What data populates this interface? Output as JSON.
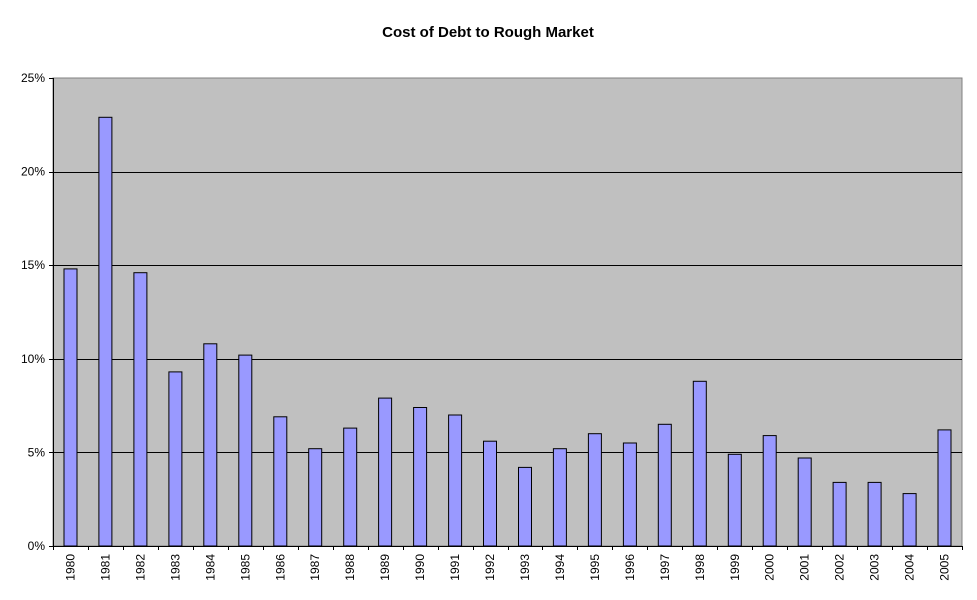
{
  "chart_data": {
    "type": "bar",
    "title": "Cost of Debt to Rough Market",
    "xlabel": "",
    "ylabel": "",
    "categories": [
      "1980",
      "1981",
      "1982",
      "1983",
      "1984",
      "1985",
      "1986",
      "1987",
      "1988",
      "1989",
      "1990",
      "1991",
      "1992",
      "1993",
      "1994",
      "1995",
      "1996",
      "1997",
      "1998",
      "1999",
      "2000",
      "2001",
      "2002",
      "2003",
      "2004",
      "2005"
    ],
    "series": [
      {
        "values": [
          14.8,
          22.9,
          14.6,
          9.3,
          10.8,
          10.2,
          6.9,
          5.2,
          6.3,
          7.9,
          7.4,
          7.0,
          5.6,
          4.2,
          5.2,
          6.0,
          5.5,
          6.5,
          8.8,
          4.9,
          5.9,
          4.7,
          3.4,
          3.4,
          2.8,
          6.2
        ]
      }
    ],
    "ylim": [
      0,
      25
    ],
    "yticks": [
      0,
      5,
      10,
      15,
      20,
      25
    ],
    "ytick_labels": [
      "0%",
      "5%",
      "10%",
      "15%",
      "20%",
      "25%"
    ],
    "grid": "horizontal",
    "legend": "none",
    "colors": {
      "bar_fill": "#9999FF",
      "bar_stroke": "#000000",
      "plot_background": "#C0C0C0",
      "gridline": "#000000"
    }
  }
}
